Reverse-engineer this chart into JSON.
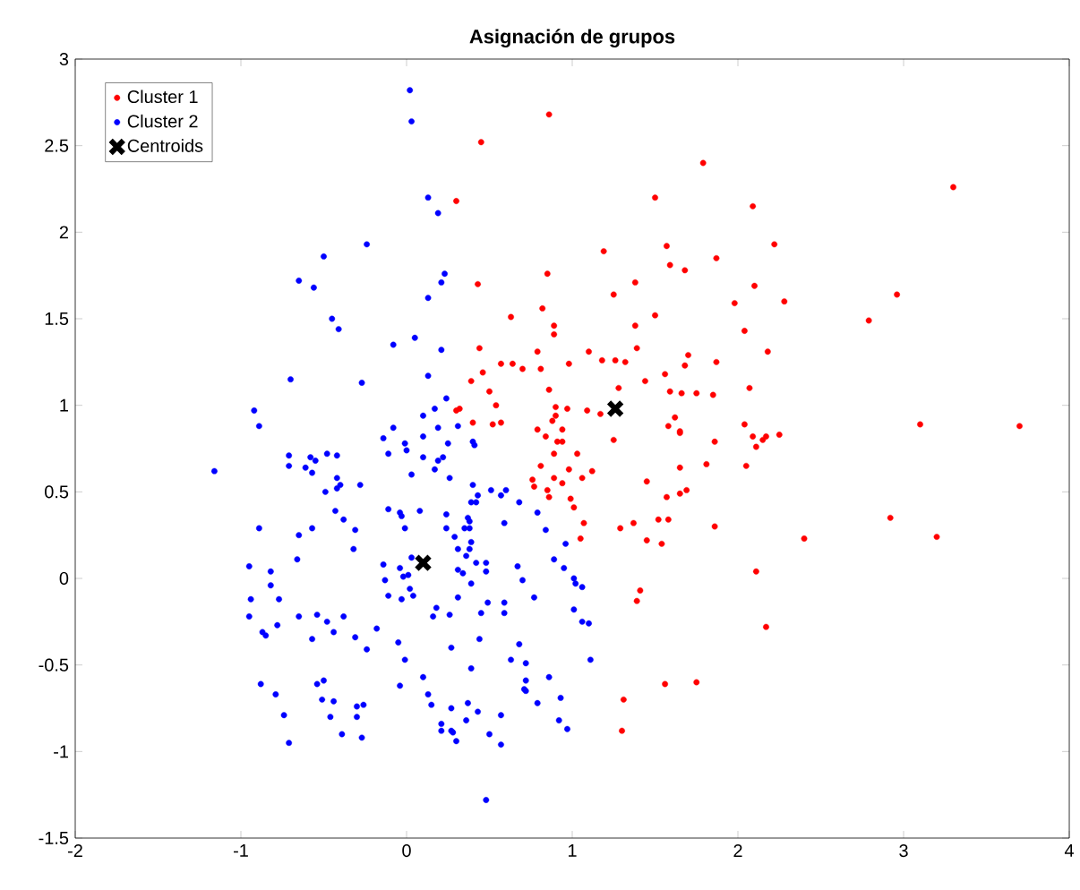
{
  "chart_data": {
    "type": "scatter",
    "title": "Asignación de grupos",
    "xlim": [
      -2,
      4
    ],
    "ylim": [
      -1.5,
      3
    ],
    "xticks": [
      -2,
      -1,
      0,
      1,
      2,
      3,
      4
    ],
    "yticks": [
      -1.5,
      -1,
      -0.5,
      0,
      0.5,
      1,
      1.5,
      2,
      2.5,
      3
    ],
    "legend": "top left",
    "series": [
      {
        "name": "Cluster 1",
        "color": "#ff0000",
        "marker": "circle",
        "x": [
          0.45,
          0.86,
          0.3,
          1.5,
          1.79,
          2.09,
          3.3,
          1.19,
          1.57,
          2.22,
          1.59,
          1.68,
          1.87,
          1.38,
          1.25,
          2.1,
          1.98,
          2.28,
          2.96,
          2.79,
          1.5,
          1.38,
          2.04,
          1.39,
          2.18,
          1.7,
          1.68,
          1.87,
          1.1,
          1.18,
          1.26,
          1.32,
          1.56,
          1.44,
          1.59,
          1.66,
          1.75,
          1.85,
          2.07,
          1.09,
          1.17,
          1.28,
          0.43,
          0.85,
          0.82,
          0.89,
          0.89,
          0.63,
          0.44,
          0.79,
          0.57,
          0.64,
          0.7,
          0.81,
          0.98,
          0.46,
          0.39,
          0.5,
          0.54,
          0.32,
          0.86,
          0.9,
          0.97,
          0.9,
          0.4,
          0.52,
          0.57,
          0.79,
          0.88,
          0.94,
          1.25,
          1.58,
          1.62,
          1.65,
          2.04,
          2.09,
          2.15,
          2.17,
          2.25,
          3.1,
          3.7,
          0.84,
          0.91,
          0.94,
          0.89,
          1.03,
          0.81,
          0.98,
          1.12,
          0.76,
          0.77,
          0.89,
          0.94,
          1.06,
          0.85,
          0.86,
          0.99,
          1.01,
          1.07,
          1.05,
          1.29,
          1.37,
          1.45,
          1.45,
          1.54,
          1.52,
          1.58,
          1.57,
          1.65,
          1.69,
          1.65,
          1.81,
          1.86,
          2.05,
          1.86,
          1.65,
          2.11,
          2.92,
          3.2,
          2.4,
          2.11,
          1.41,
          1.39,
          2.17,
          1.56,
          1.75,
          1.31,
          1.3,
          0.3
        ],
        "values": [
          2.52,
          2.68,
          2.18,
          2.2,
          2.4,
          2.15,
          2.26,
          1.89,
          1.92,
          1.93,
          1.81,
          1.78,
          1.85,
          1.71,
          1.64,
          1.69,
          1.59,
          1.6,
          1.64,
          1.49,
          1.52,
          1.46,
          1.43,
          1.33,
          1.31,
          1.29,
          1.23,
          1.25,
          1.31,
          1.26,
          1.26,
          1.25,
          1.18,
          1.14,
          1.08,
          1.07,
          1.07,
          1.06,
          1.1,
          0.97,
          0.95,
          1.1,
          1.7,
          1.76,
          1.56,
          1.46,
          1.41,
          1.51,
          1.33,
          1.31,
          1.24,
          1.24,
          1.21,
          1.21,
          1.24,
          1.19,
          1.14,
          1.08,
          1.0,
          0.98,
          1.09,
          0.99,
          0.98,
          0.94,
          0.9,
          0.89,
          0.9,
          0.86,
          0.91,
          0.86,
          0.8,
          0.88,
          0.93,
          0.85,
          0.89,
          0.82,
          0.8,
          0.82,
          0.83,
          0.89,
          0.88,
          0.82,
          0.79,
          0.79,
          0.72,
          0.72,
          0.65,
          0.63,
          0.62,
          0.57,
          0.53,
          0.58,
          0.55,
          0.58,
          0.51,
          0.47,
          0.46,
          0.41,
          0.32,
          0.23,
          0.29,
          0.32,
          0.56,
          0.22,
          0.2,
          0.34,
          0.34,
          0.47,
          0.49,
          0.51,
          0.64,
          0.66,
          0.3,
          0.65,
          0.79,
          0.84,
          0.76,
          0.35,
          0.24,
          0.23,
          0.04,
          -0.07,
          -0.13,
          -0.28,
          -0.61,
          -0.6,
          -0.7,
          -0.88,
          0.97
        ]
      },
      {
        "name": "Cluster 2",
        "color": "#0000ff",
        "marker": "circle",
        "x": [
          0.02,
          0.03,
          0.13,
          0.19,
          -0.24,
          -0.5,
          -0.65,
          -0.56,
          0.23,
          0.21,
          0.13,
          -0.45,
          -0.41,
          -0.08,
          0.05,
          0.21,
          -0.7,
          -0.27,
          0.13,
          0.24,
          -0.92,
          -0.89,
          0.1,
          0.17,
          -0.08,
          -0.14,
          -0.01,
          0.19,
          0.31,
          0.4,
          -1.16,
          -0.71,
          -0.71,
          -0.58,
          -0.55,
          -0.61,
          -0.57,
          -0.48,
          -0.42,
          -0.42,
          -0.4,
          -0.42,
          -0.28,
          -0.49,
          -0.11,
          0.0,
          0.1,
          0.1,
          0.25,
          0.22,
          0.19,
          0.17,
          0.41,
          0.03,
          0.26,
          0.4,
          0.43,
          0.42,
          0.39,
          0.51,
          0.57,
          0.6,
          0.68,
          0.79,
          -0.89,
          -0.65,
          -0.57,
          -0.43,
          -0.38,
          -0.31,
          -0.32,
          -0.66,
          -0.11,
          -0.04,
          -0.03,
          0.08,
          -0.01,
          0.24,
          0.24,
          0.29,
          0.31,
          0.37,
          0.38,
          0.35,
          0.38,
          0.39,
          0.38,
          0.36,
          0.59,
          0.84,
          0.96,
          0.89,
          0.95,
          1.01,
          1.02,
          1.06,
          1.01,
          1.06,
          1.1,
          1.11,
          0.67,
          0.7,
          0.77,
          0.59,
          0.59,
          0.49,
          0.45,
          0.42,
          0.48,
          0.48,
          0.31,
          0.34,
          0.39,
          0.31,
          0.26,
          0.18,
          0.16,
          -0.14,
          -0.04,
          -0.13,
          -0.02,
          0.01,
          0.02,
          0.04,
          -0.11,
          -0.03,
          0.03,
          -0.95,
          -0.82,
          -0.82,
          -0.94,
          -0.77,
          -0.95,
          -0.87,
          -0.85,
          -0.78,
          -0.65,
          -0.54,
          -0.48,
          -0.38,
          -0.44,
          -0.57,
          -0.31,
          -0.24,
          -0.18,
          -0.05,
          -0.01,
          0.27,
          0.44,
          0.39,
          0.1,
          -0.04,
          -0.88,
          -0.79,
          -0.74,
          -0.71,
          -0.54,
          -0.5,
          -0.51,
          -0.44,
          -0.46,
          -0.39,
          -0.3,
          -0.26,
          -0.3,
          -0.27,
          0.13,
          0.15,
          0.27,
          0.21,
          0.21,
          0.27,
          0.28,
          0.3,
          0.37,
          0.36,
          0.5,
          0.43,
          0.57,
          0.57,
          0.48,
          0.63,
          0.68,
          0.72,
          0.72,
          0.71,
          0.72,
          0.79,
          0.86,
          0.93,
          0.92,
          0.97
        ],
        "values": [
          2.82,
          2.64,
          2.2,
          2.11,
          1.93,
          1.86,
          1.72,
          1.68,
          1.76,
          1.71,
          1.62,
          1.5,
          1.44,
          1.35,
          1.39,
          1.32,
          1.15,
          1.13,
          1.17,
          1.04,
          0.97,
          0.88,
          0.94,
          0.98,
          0.87,
          0.81,
          0.78,
          0.87,
          0.88,
          0.79,
          0.62,
          0.71,
          0.65,
          0.7,
          0.68,
          0.64,
          0.61,
          0.72,
          0.71,
          0.58,
          0.54,
          0.52,
          0.54,
          0.5,
          0.72,
          0.74,
          0.82,
          0.7,
          0.78,
          0.7,
          0.68,
          0.63,
          0.77,
          0.6,
          0.58,
          0.54,
          0.48,
          0.44,
          0.44,
          0.51,
          0.48,
          0.51,
          0.44,
          0.38,
          0.29,
          0.25,
          0.29,
          0.39,
          0.34,
          0.28,
          0.17,
          0.11,
          0.4,
          0.38,
          0.36,
          0.39,
          0.29,
          0.37,
          0.29,
          0.24,
          0.17,
          0.35,
          0.33,
          0.29,
          0.29,
          0.21,
          0.17,
          0.13,
          0.32,
          0.28,
          0.2,
          0.11,
          0.06,
          0.0,
          -0.03,
          -0.05,
          -0.18,
          -0.25,
          -0.26,
          -0.47,
          0.07,
          -0.01,
          -0.11,
          -0.14,
          -0.2,
          -0.14,
          -0.2,
          0.09,
          0.09,
          0.04,
          0.05,
          0.03,
          -0.03,
          -0.11,
          -0.21,
          -0.17,
          -0.22,
          0.08,
          0.06,
          -0.01,
          0.01,
          0.02,
          -0.06,
          -0.1,
          -0.1,
          -0.12,
          0.12,
          0.07,
          0.04,
          -0.04,
          -0.12,
          -0.12,
          -0.22,
          -0.31,
          -0.33,
          -0.27,
          -0.22,
          -0.21,
          -0.25,
          -0.22,
          -0.31,
          -0.35,
          -0.34,
          -0.41,
          -0.29,
          -0.37,
          -0.47,
          -0.4,
          -0.35,
          -0.52,
          -0.57,
          -0.62,
          -0.61,
          -0.67,
          -0.79,
          -0.95,
          -0.61,
          -0.59,
          -0.7,
          -0.71,
          -0.8,
          -0.9,
          -0.74,
          -0.73,
          -0.8,
          -0.92,
          -0.67,
          -0.73,
          -0.75,
          -0.84,
          -0.88,
          -0.88,
          -0.89,
          -0.94,
          -0.72,
          -0.82,
          -0.9,
          -0.77,
          -0.79,
          -0.96,
          -1.28,
          -0.47,
          -0.38,
          -0.49,
          -0.59,
          -0.64,
          -0.65,
          -0.72,
          -0.57,
          -0.69,
          -0.82,
          -0.87
        ]
      },
      {
        "name": "Centroids",
        "color": "#000000",
        "marker": "cross",
        "x": [
          0.1,
          1.26
        ],
        "values": [
          0.09,
          0.98
        ]
      }
    ]
  }
}
